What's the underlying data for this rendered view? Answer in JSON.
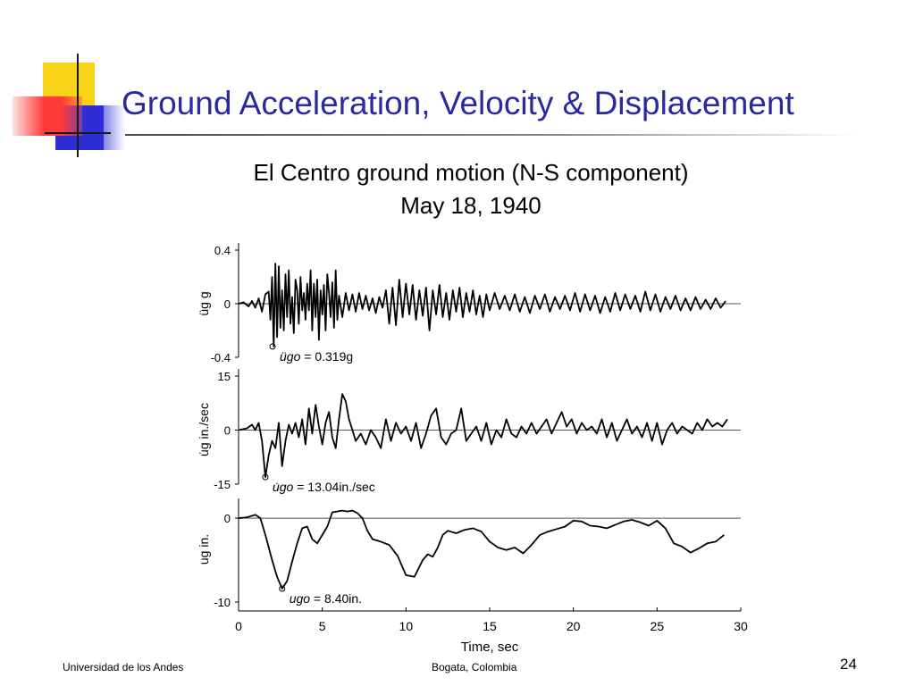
{
  "slide": {
    "title": "Ground Acceleration, Velocity & Displacement",
    "footer_left": "Universidad de los Andes",
    "footer_center": "Bogata, Colombia",
    "page_number": "24"
  },
  "colors": {
    "title": "#2a2a9e",
    "accent_yellow": "#f7d31a",
    "accent_blue": "#2d2fd4",
    "accent_red": "#ff3a3a"
  },
  "chart_data": {
    "type": "line",
    "title": "El Centro ground motion (N-S component)",
    "subtitle": "May 18, 1940",
    "xlabel": "Time, sec",
    "xlim": [
      0,
      30
    ],
    "x_ticks": [
      "0",
      "5",
      "10",
      "15",
      "20",
      "25",
      "30"
    ],
    "panels": [
      {
        "ylabel": "üg g",
        "ylim": [
          -0.4,
          0.4
        ],
        "y_ticks": [
          "0.4",
          "0",
          "-0.4"
        ],
        "peak_label": "= 0.319g",
        "peak_symbol": "ügo",
        "peak": {
          "t": 2.03,
          "value": -0.319
        },
        "series": {
          "t": [
            0,
            0.3,
            0.6,
            0.8,
            1.0,
            1.2,
            1.4,
            1.6,
            1.8,
            1.9,
            2.0,
            2.1,
            2.2,
            2.3,
            2.4,
            2.5,
            2.6,
            2.7,
            2.8,
            2.9,
            3.0,
            3.1,
            3.2,
            3.3,
            3.4,
            3.5,
            3.6,
            3.7,
            3.8,
            3.9,
            4.0,
            4.1,
            4.2,
            4.3,
            4.4,
            4.5,
            4.6,
            4.7,
            4.8,
            4.9,
            5.0,
            5.1,
            5.2,
            5.3,
            5.4,
            5.5,
            5.6,
            5.7,
            5.8,
            5.9,
            6.0,
            6.2,
            6.4,
            6.6,
            6.8,
            7.0,
            7.2,
            7.4,
            7.6,
            7.8,
            8.0,
            8.2,
            8.4,
            8.6,
            8.8,
            9.0,
            9.2,
            9.4,
            9.6,
            9.8,
            10.0,
            10.2,
            10.4,
            10.6,
            10.8,
            11.0,
            11.2,
            11.4,
            11.6,
            11.8,
            12.0,
            12.2,
            12.4,
            12.6,
            12.8,
            13.0,
            13.2,
            13.4,
            13.6,
            13.8,
            14.0,
            14.2,
            14.4,
            14.6,
            14.8,
            15.0,
            15.3,
            15.6,
            15.9,
            16.2,
            16.5,
            16.8,
            17.1,
            17.4,
            17.7,
            18.0,
            18.3,
            18.6,
            18.9,
            19.2,
            19.5,
            19.8,
            20.1,
            20.4,
            20.7,
            21.0,
            21.3,
            21.6,
            21.9,
            22.2,
            22.5,
            22.8,
            23.1,
            23.4,
            23.7,
            24.0,
            24.3,
            24.6,
            24.9,
            25.2,
            25.5,
            25.8,
            26.1,
            26.4,
            26.7,
            27.0,
            27.3,
            27.6,
            27.9,
            28.2,
            28.5,
            28.8,
            29.1
          ],
          "values": [
            0,
            0.01,
            -0.02,
            0.02,
            -0.03,
            0.04,
            -0.06,
            0.07,
            0.09,
            -0.12,
            0.2,
            -0.319,
            0.3,
            -0.25,
            0.28,
            -0.18,
            0.1,
            -0.2,
            0.22,
            -0.1,
            0.25,
            -0.15,
            0.05,
            -0.22,
            0.18,
            0.1,
            -0.15,
            0.2,
            -0.05,
            0.08,
            -0.12,
            0.15,
            -0.05,
            0.25,
            -0.2,
            0.15,
            -0.1,
            0.18,
            -0.27,
            0.1,
            -0.08,
            0.14,
            -0.2,
            0.22,
            0.08,
            -0.1,
            0.16,
            -0.18,
            0.25,
            -0.12,
            0.06,
            -0.1,
            0.08,
            -0.05,
            0.07,
            -0.06,
            0.08,
            -0.04,
            0.06,
            -0.05,
            0.04,
            -0.07,
            0.05,
            -0.03,
            0.1,
            -0.15,
            0.12,
            -0.16,
            0.18,
            -0.1,
            0.15,
            -0.08,
            0.14,
            -0.12,
            0.1,
            -0.09,
            0.12,
            -0.2,
            0.1,
            -0.08,
            0.14,
            -0.1,
            0.08,
            -0.12,
            0.1,
            -0.06,
            0.12,
            -0.1,
            0.08,
            -0.06,
            0.1,
            -0.08,
            0.06,
            -0.1,
            0.07,
            -0.05,
            0.08,
            -0.04,
            0.06,
            -0.05,
            0.07,
            -0.06,
            0.05,
            -0.07,
            0.06,
            -0.04,
            0.07,
            -0.06,
            0.05,
            -0.04,
            0.06,
            -0.05,
            0.08,
            -0.06,
            0.07,
            -0.05,
            0.06,
            -0.07,
            0.05,
            -0.06,
            0.08,
            -0.05,
            0.07,
            -0.04,
            0.06,
            -0.06,
            0.09,
            -0.05,
            0.07,
            -0.06,
            0.05,
            -0.04,
            0.06,
            -0.05,
            0.04,
            -0.05,
            0.05,
            -0.04,
            0.03,
            -0.04,
            0.04,
            -0.03,
            0.02
          ]
        }
      },
      {
        "ylabel": "u̇g in./sec",
        "ylim": [
          -15,
          15
        ],
        "y_ticks": [
          "15",
          "0",
          "-15"
        ],
        "peak_label": "= 13.04in./sec",
        "peak_symbol": "u̇go",
        "peak": {
          "t": 1.6,
          "value": -13.04
        },
        "series": {
          "t": [
            0,
            0.5,
            0.8,
            1.0,
            1.2,
            1.4,
            1.6,
            1.8,
            2.0,
            2.2,
            2.4,
            2.6,
            2.8,
            3.0,
            3.2,
            3.4,
            3.6,
            3.8,
            4.0,
            4.2,
            4.4,
            4.6,
            4.8,
            5.0,
            5.2,
            5.4,
            5.6,
            5.8,
            6.0,
            6.2,
            6.4,
            6.6,
            6.8,
            7.0,
            7.3,
            7.6,
            7.9,
            8.2,
            8.5,
            8.8,
            9.1,
            9.4,
            9.7,
            10.0,
            10.3,
            10.6,
            10.9,
            11.2,
            11.5,
            11.8,
            12.1,
            12.4,
            12.7,
            13.0,
            13.3,
            13.6,
            13.9,
            14.2,
            14.5,
            14.8,
            15.1,
            15.4,
            15.7,
            16.0,
            16.3,
            16.6,
            16.9,
            17.2,
            17.5,
            17.8,
            18.1,
            18.4,
            18.7,
            19.0,
            19.3,
            19.6,
            19.9,
            20.2,
            20.5,
            20.8,
            21.1,
            21.4,
            21.7,
            22.0,
            22.3,
            22.6,
            22.9,
            23.2,
            23.5,
            23.8,
            24.1,
            24.4,
            24.7,
            25.0,
            25.3,
            25.6,
            25.9,
            26.2,
            26.5,
            26.8,
            27.1,
            27.4,
            27.7,
            28.0,
            28.3,
            28.6,
            28.9,
            29.2
          ],
          "values": [
            0,
            0.5,
            1.5,
            0,
            2,
            -3,
            -13.04,
            -7,
            -3,
            -5,
            2,
            -10,
            -3,
            1.5,
            -1,
            2,
            -2,
            3,
            -4,
            6,
            -1,
            7,
            1,
            -4,
            2,
            5,
            -2,
            -5,
            3,
            10,
            8,
            3,
            0,
            -3,
            -1,
            -4,
            0,
            -2,
            -5,
            3,
            -3,
            2,
            -1,
            1,
            -3,
            2,
            -5,
            -1,
            4,
            6,
            -2,
            -4,
            -1,
            0,
            6,
            -3,
            -1,
            1,
            -3,
            2,
            -4,
            0,
            -2,
            3,
            -1,
            -2,
            1,
            -1,
            2,
            -1,
            1,
            3,
            -1,
            2,
            5,
            1,
            3,
            -1,
            2,
            0,
            1,
            -1,
            3,
            -2,
            2,
            -3,
            0,
            3,
            -1,
            1,
            -2,
            2,
            -3,
            2,
            -4,
            0,
            2,
            -1,
            1,
            0,
            -1,
            2,
            0,
            3,
            1,
            2,
            1,
            3
          ]
        }
      },
      {
        "ylabel": "ug in.",
        "ylim": [
          -10,
          1.5
        ],
        "y_ticks": [
          "0",
          "-10"
        ],
        "peak_label": "= 8.40in.",
        "peak_symbol": "ugo",
        "peak": {
          "t": 2.6,
          "value": -8.4
        },
        "series": {
          "t": [
            0,
            0.5,
            1.0,
            1.3,
            1.6,
            2.0,
            2.3,
            2.6,
            2.9,
            3.2,
            3.5,
            3.8,
            4.1,
            4.4,
            4.7,
            5.0,
            5.3,
            5.6,
            5.9,
            6.2,
            6.5,
            6.8,
            7.1,
            7.4,
            7.7,
            8.0,
            8.5,
            9.0,
            9.5,
            10.0,
            10.5,
            11.0,
            11.3,
            11.6,
            11.9,
            12.2,
            12.5,
            13.0,
            13.5,
            14.0,
            14.5,
            15.0,
            15.5,
            16.0,
            16.5,
            17.0,
            17.5,
            18.0,
            18.5,
            19.0,
            19.5,
            20.0,
            20.5,
            21.0,
            21.5,
            22.0,
            22.5,
            23.0,
            23.5,
            24.0,
            24.5,
            25.0,
            25.5,
            26.0,
            26.5,
            27.0,
            27.5,
            28.0,
            28.5,
            29.0
          ],
          "values": [
            0,
            0.1,
            0.4,
            0,
            -2,
            -5,
            -7,
            -8.4,
            -7.5,
            -5.2,
            -3,
            -1.2,
            -1,
            -2.5,
            -3,
            -2,
            -1,
            0.7,
            0.8,
            0.9,
            0.8,
            0.9,
            0.6,
            0,
            -1.5,
            -2.5,
            -2.8,
            -3.2,
            -4.5,
            -6.8,
            -7,
            -5,
            -4.3,
            -4.6,
            -3.5,
            -2,
            -1.5,
            -1.8,
            -1.4,
            -1.2,
            -1.6,
            -2.8,
            -3.5,
            -3.8,
            -3.5,
            -4.2,
            -3.2,
            -2,
            -1.6,
            -1.3,
            -1,
            -0.3,
            -0.4,
            -0.9,
            -1,
            -1.2,
            -0.8,
            -0.4,
            -0.2,
            -0.5,
            -0.9,
            -0.3,
            -1.2,
            -3,
            -3.4,
            -4.1,
            -3.6,
            -3,
            -2.8,
            -2
          ]
        }
      }
    ]
  }
}
